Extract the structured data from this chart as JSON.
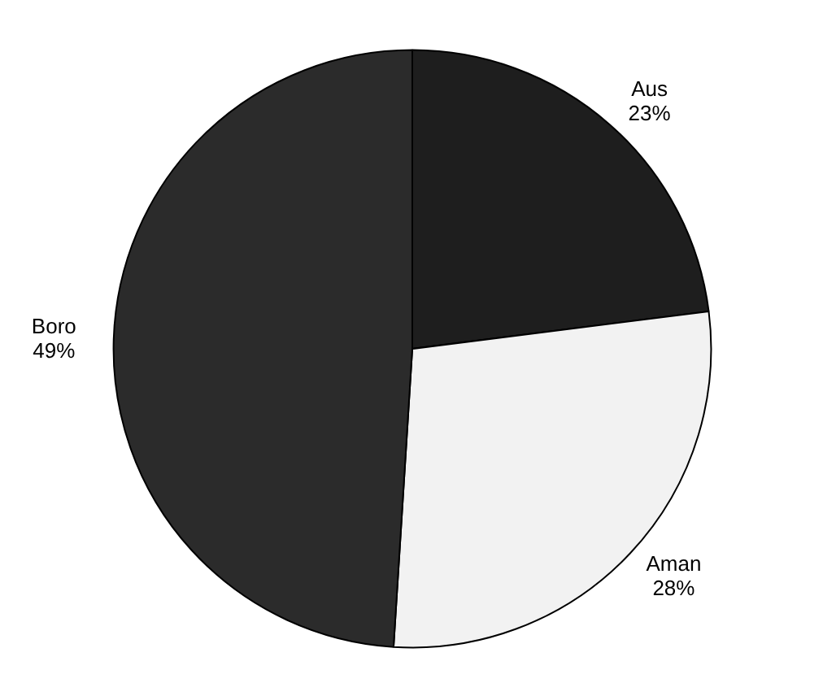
{
  "chart_data": {
    "type": "pie",
    "categories": [
      "Aus",
      "Aman",
      "Boro"
    ],
    "values": [
      23,
      28,
      49
    ],
    "colors": [
      "#1e1e1e",
      "#f2f2f2",
      "#2b2b2b"
    ],
    "value_labels": [
      "23%",
      "28%",
      "49%"
    ],
    "legend": false
  }
}
